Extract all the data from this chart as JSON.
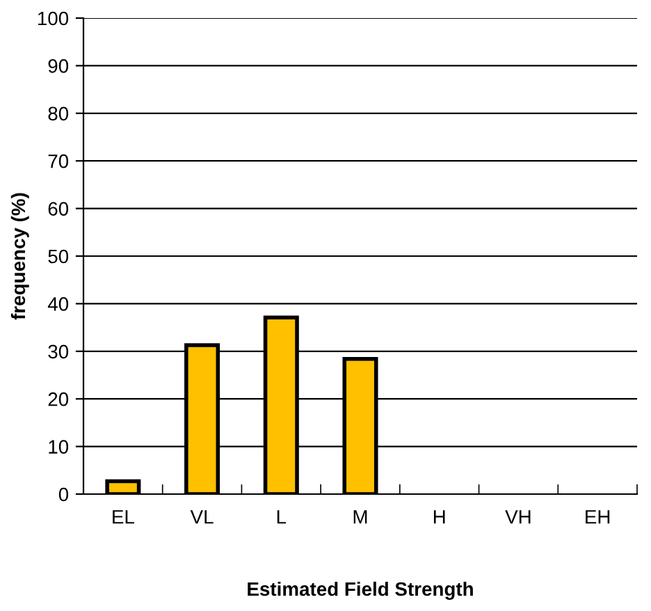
{
  "chart_data": {
    "type": "bar",
    "xlabel": "Estimated Field Strength",
    "ylabel": "frequency (%)",
    "categories": [
      "EL",
      "VL",
      "L",
      "M",
      "H",
      "VH",
      "EH"
    ],
    "values": [
      2.7,
      31.3,
      37.1,
      28.4,
      0,
      0,
      0
    ],
    "color": "#ffc000",
    "ylim": [
      0,
      100
    ],
    "yticks": [
      0,
      10,
      20,
      30,
      40,
      50,
      60,
      70,
      80,
      90,
      100
    ],
    "grid": "y"
  }
}
